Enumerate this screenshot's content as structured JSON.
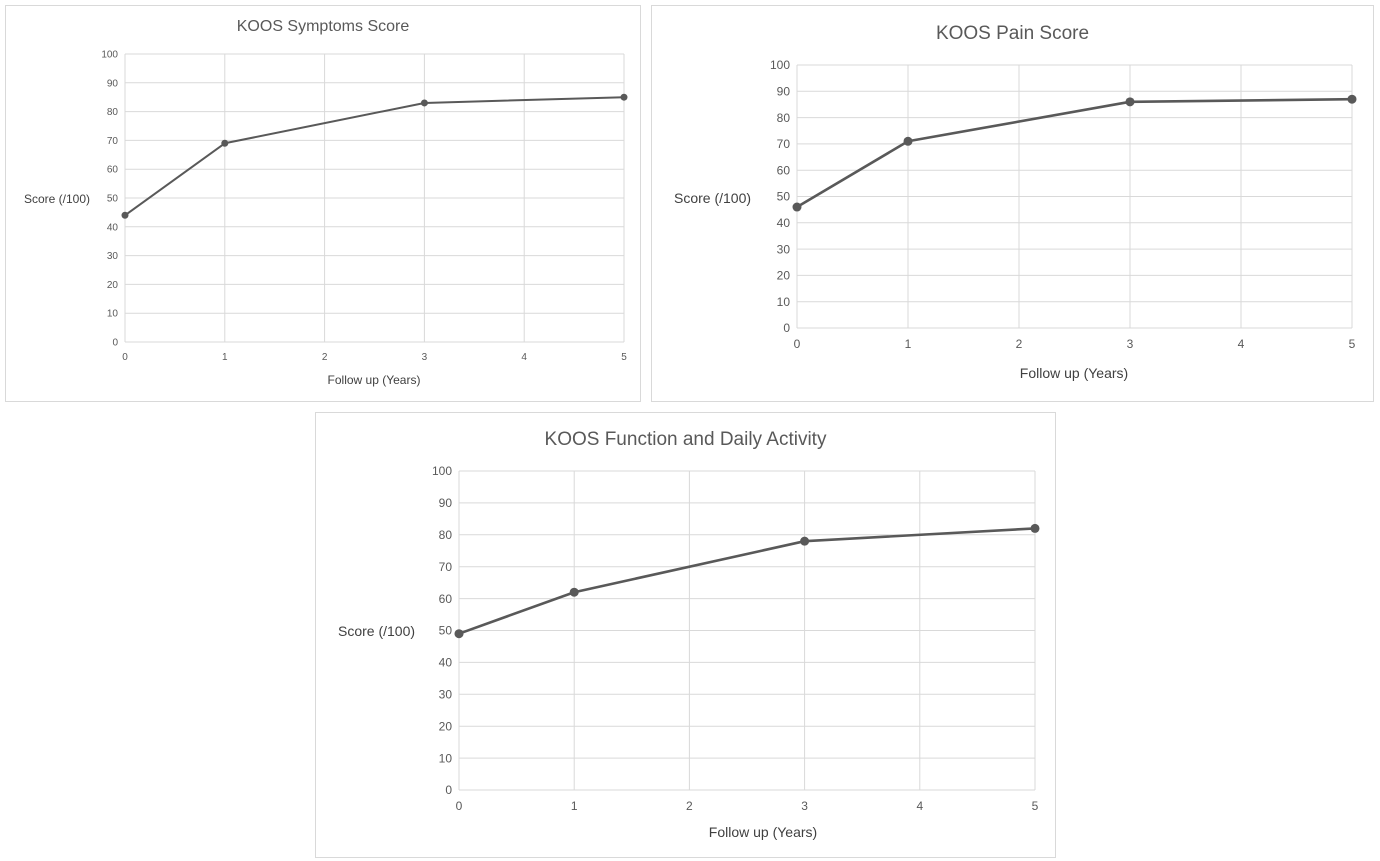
{
  "chart_data": [
    {
      "type": "line",
      "title": "KOOS Symptoms Score",
      "xlabel": "Follow up (Years)",
      "ylabel": "Score (/100)",
      "x_ticks": [
        "0",
        "1",
        "2",
        "3",
        "4",
        "5"
      ],
      "y_ticks": [
        "0",
        "10",
        "20",
        "30",
        "40",
        "50",
        "60",
        "70",
        "80",
        "90",
        "100"
      ],
      "xlim": [
        0,
        5
      ],
      "ylim": [
        0,
        100
      ],
      "grid": true,
      "series": [
        {
          "x": [
            0,
            1,
            3,
            5
          ],
          "y": [
            44,
            69,
            83,
            85
          ]
        }
      ]
    },
    {
      "type": "line",
      "title": "KOOS Pain Score",
      "xlabel": "Follow up (Years)",
      "ylabel": "Score (/100)",
      "x_ticks": [
        "0",
        "1",
        "2",
        "3",
        "4",
        "5"
      ],
      "y_ticks": [
        "0",
        "10",
        "20",
        "30",
        "40",
        "50",
        "60",
        "70",
        "80",
        "90",
        "100"
      ],
      "xlim": [
        0,
        5
      ],
      "ylim": [
        0,
        100
      ],
      "grid": true,
      "series": [
        {
          "x": [
            0,
            1,
            3,
            5
          ],
          "y": [
            46,
            71,
            86,
            87
          ]
        }
      ]
    },
    {
      "type": "line",
      "title": "KOOS Function and Daily Activity",
      "xlabel": "Follow up (Years)",
      "ylabel": "Score (/100)",
      "x_ticks": [
        "0",
        "1",
        "2",
        "3",
        "4",
        "5"
      ],
      "y_ticks": [
        "0",
        "10",
        "20",
        "30",
        "40",
        "50",
        "60",
        "70",
        "80",
        "90",
        "100"
      ],
      "xlim": [
        0,
        5
      ],
      "ylim": [
        0,
        100
      ],
      "grid": true,
      "series": [
        {
          "x": [
            0,
            1,
            3,
            5
          ],
          "y": [
            49,
            62,
            78,
            82
          ]
        }
      ]
    }
  ],
  "colors": {
    "line": "#595959",
    "marker": "#595959",
    "grid": "#d9d9d9",
    "text": "#595959"
  }
}
